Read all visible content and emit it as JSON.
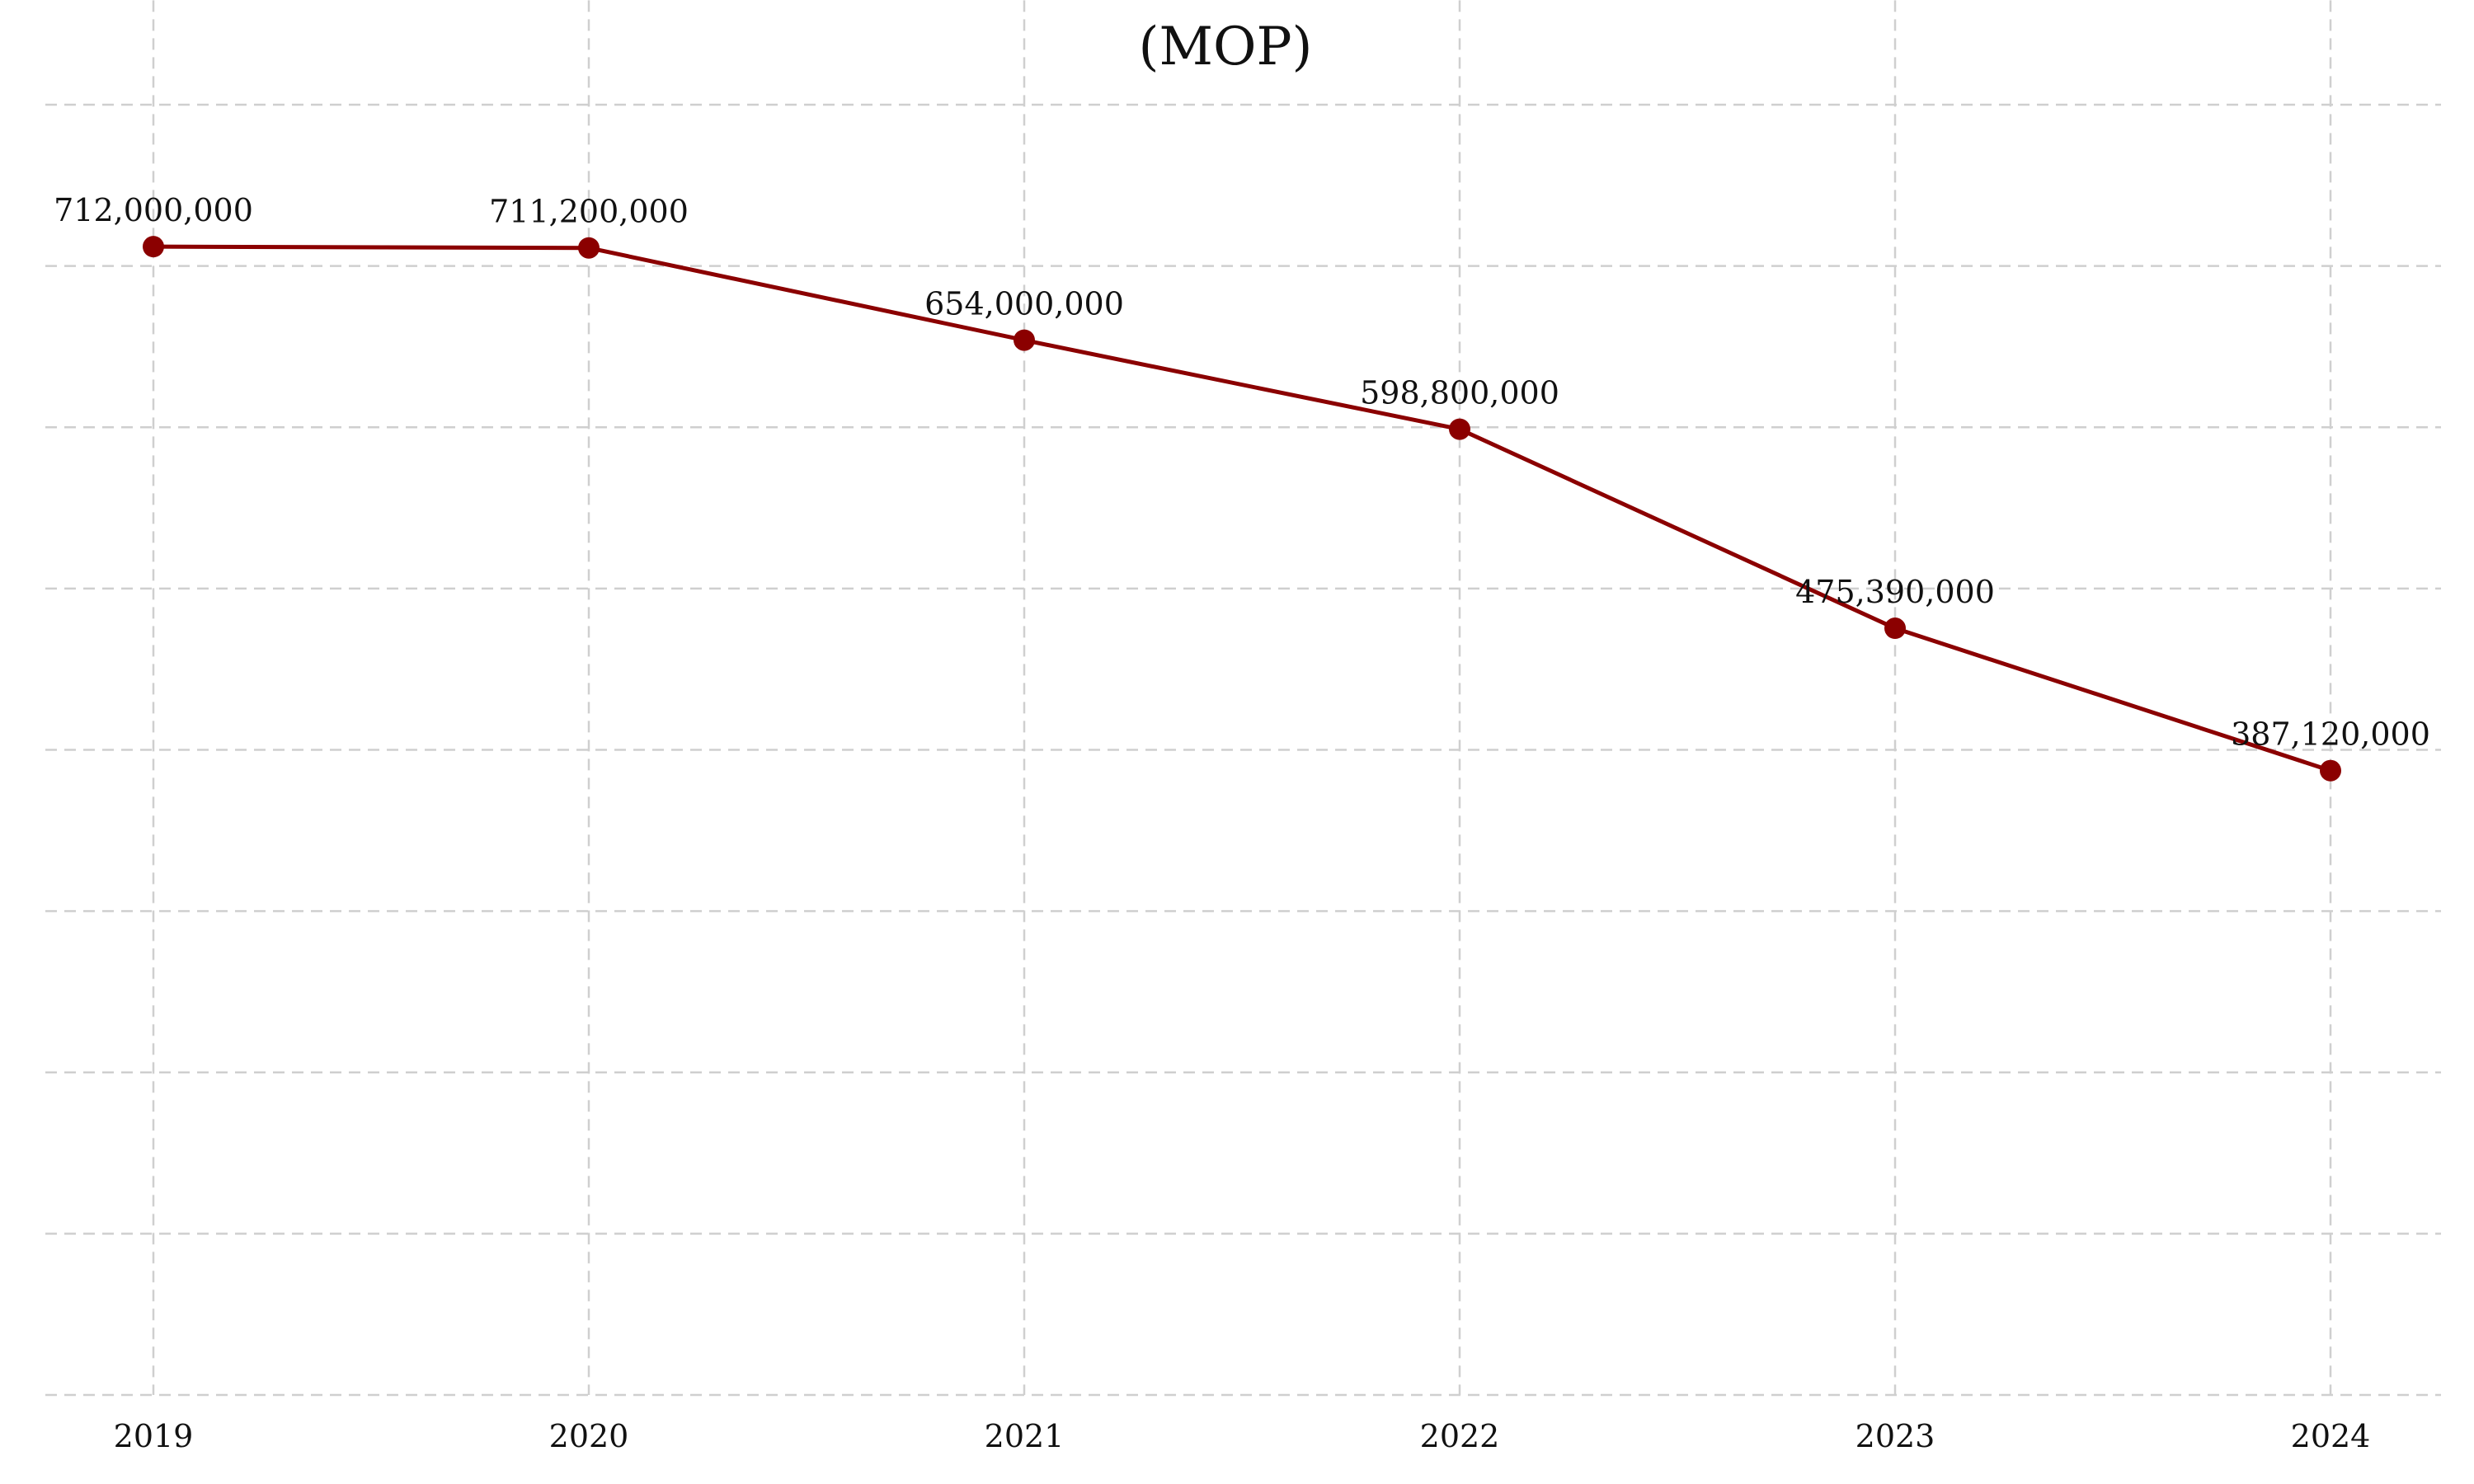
{
  "chart_data": {
    "type": "line",
    "title": "(MOP)",
    "xlabel": "",
    "ylabel": "",
    "categories": [
      "2019",
      "2020",
      "2021",
      "2022",
      "2023",
      "2024"
    ],
    "values": [
      712000000,
      711200000,
      654000000,
      598800000,
      475390000,
      387120000
    ],
    "data_labels": [
      "712,000,000",
      "711,200,000",
      "654,000,000",
      "598,800,000",
      "475,390,000",
      "387,120,000"
    ],
    "ylim": [
      0,
      800000000
    ],
    "y_grid_step": 100000000,
    "grid": true,
    "y_tick_labels_visible": false,
    "line_color": "#8b0000",
    "marker_color": "#8b0000"
  }
}
